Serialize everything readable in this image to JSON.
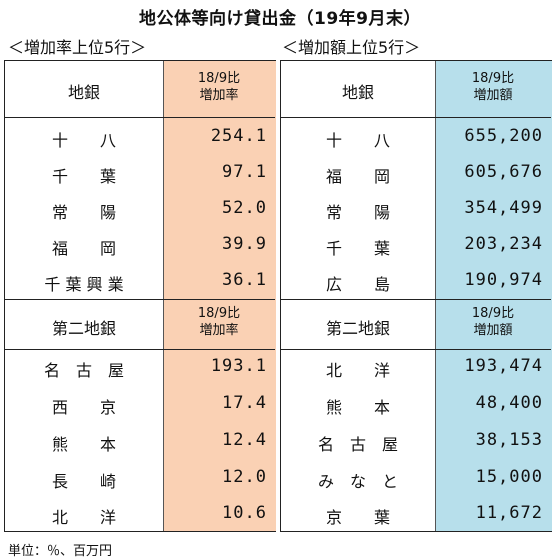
{
  "title": "地公体等向け貸出金（19年9月末）",
  "left": {
    "subtitle": "＜増加率上位5行＞",
    "chigin_header": "地銀",
    "chigin_col_line1": "18/9比",
    "chigin_col_line2": "増加率",
    "chigin_rows": [
      {
        "name": "十　　八",
        "value": "254.1"
      },
      {
        "name": "千　　葉",
        "value": "97.1"
      },
      {
        "name": "常　　陽",
        "value": "52.0"
      },
      {
        "name": "福　　岡",
        "value": "39.9"
      },
      {
        "name": "千 葉 興 業",
        "value": "36.1"
      }
    ],
    "daini_header": "第二地銀",
    "daini_col_line1": "18/9比",
    "daini_col_line2": "増加率",
    "daini_rows": [
      {
        "name": "名　古　屋",
        "value": "193.1"
      },
      {
        "name": "西　　京",
        "value": "17.4"
      },
      {
        "name": "熊　　本",
        "value": "12.4"
      },
      {
        "name": "長　　崎",
        "value": "12.0"
      },
      {
        "name": "北　　洋",
        "value": "10.6"
      }
    ]
  },
  "right": {
    "subtitle": "＜増加額上位5行＞",
    "chigin_header": "地銀",
    "chigin_col_line1": "18/9比",
    "chigin_col_line2": "増加額",
    "chigin_rows": [
      {
        "name": "十　　八",
        "value": "655,200"
      },
      {
        "name": "福　　岡",
        "value": "605,676"
      },
      {
        "name": "常　　陽",
        "value": "354,499"
      },
      {
        "name": "千　　葉",
        "value": "203,234"
      },
      {
        "name": "広　　島",
        "value": "190,974"
      }
    ],
    "daini_header": "第二地銀",
    "daini_col_line1": "18/9比",
    "daini_col_line2": "増加額",
    "daini_rows": [
      {
        "name": "北　　洋",
        "value": "193,474"
      },
      {
        "name": "熊　　本",
        "value": "48,400"
      },
      {
        "name": "名　古　屋",
        "value": "38,153"
      },
      {
        "name": "み　な　と",
        "value": "15,000"
      },
      {
        "name": "京　　葉",
        "value": "11,672"
      }
    ]
  },
  "footnote": "単位：％、百万円",
  "colors": {
    "rate_column": "#fad1b4",
    "amount_column": "#b7dfeb"
  }
}
